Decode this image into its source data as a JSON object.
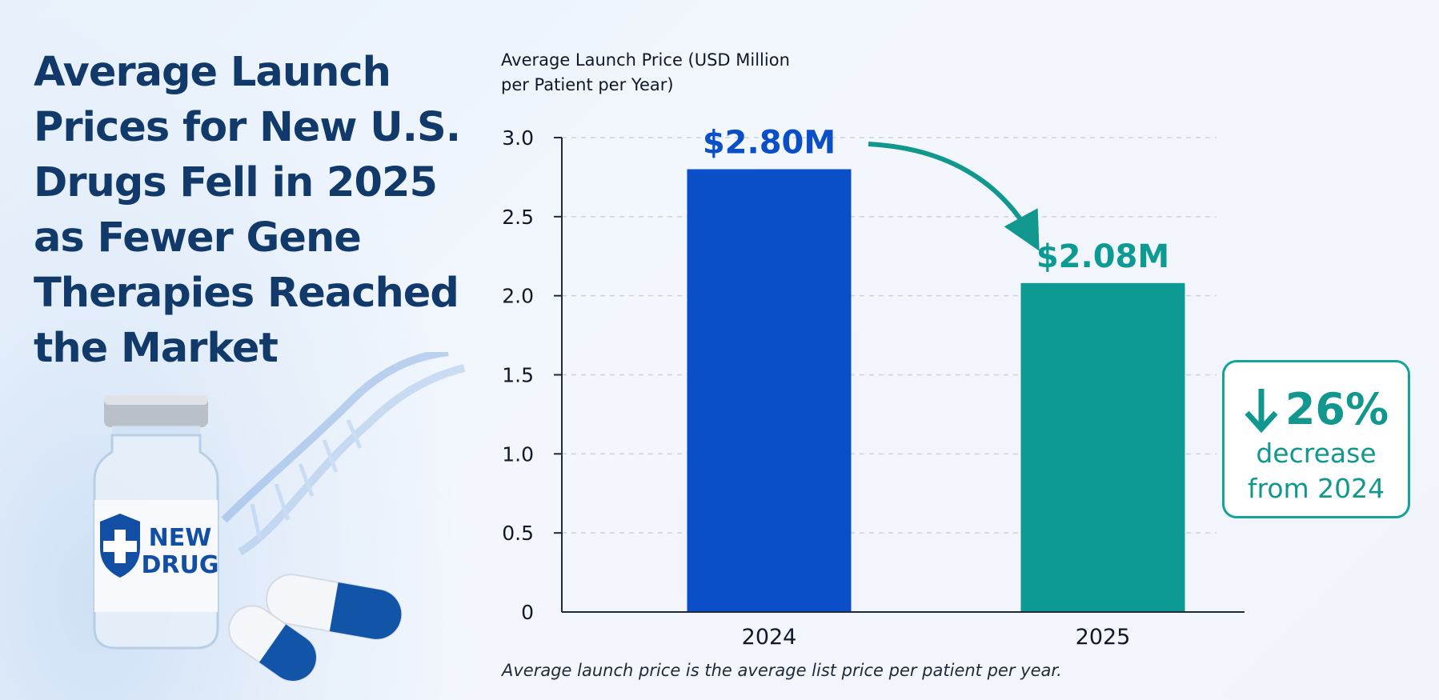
{
  "headline": "Average Launch Prices for New U.S. Drugs Fell in 2025 as Fewer Gene Therapies Reached the Market",
  "vial_label": [
    "NEW",
    "DRUG"
  ],
  "callout": {
    "value": "26%",
    "line1": "decrease",
    "line2": "from 2024"
  },
  "footnote": "Average launch price is the average list price per patient per year.",
  "colors": {
    "bar_2024": "#0b4fc8",
    "bar_2025": "#0d9a93",
    "headline": "#113a6b",
    "accent": "#12978f"
  },
  "chart_data": {
    "type": "bar",
    "ylabel": "Average Launch Price (USD Million per Patient per Year)",
    "categories": [
      "2024",
      "2025"
    ],
    "values": [
      2.8,
      2.08
    ],
    "data_labels": [
      "$2.80M",
      "$2.08M"
    ],
    "ylim": [
      0,
      3.0
    ],
    "yticks": [
      "0",
      "0.5",
      "1.0",
      "1.5",
      "2.0",
      "2.5",
      "3.0"
    ],
    "grid": true
  }
}
